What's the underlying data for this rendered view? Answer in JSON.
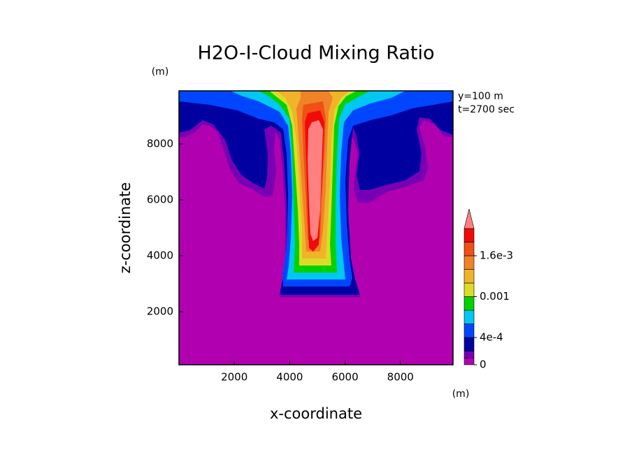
{
  "chart_data": {
    "type": "contour",
    "title": "H2O-I-Cloud Mixing Ratio",
    "x_label": "x-coordinate",
    "y_label": "z-coordinate",
    "x_unit": "(m)",
    "y_unit": "(m)",
    "annotations": [
      "y=100 m",
      "t=2700 sec"
    ],
    "xlim": [
      0,
      9900
    ],
    "ylim": [
      100,
      9900
    ],
    "xticks": [
      2000,
      4000,
      6000,
      8000
    ],
    "yticks": [
      2000,
      4000,
      6000,
      8000
    ],
    "levels": [
      0,
      0.0001,
      0.0002,
      0.0004,
      0.0006,
      0.0008,
      0.001,
      0.0012,
      0.0014,
      0.0016,
      0.0018,
      0.002
    ],
    "colors": [
      "#b000b0",
      "#7800b4",
      "#0000a0",
      "#0046ff",
      "#00c8f0",
      "#00d200",
      "#dcdc28",
      "#f0b428",
      "#f08228",
      "#f05014",
      "#f00a0a",
      "#ff8080"
    ],
    "colorbar_ticks": [
      0,
      {
        "value": 0.0004,
        "label": "4e-4"
      },
      0.001,
      {
        "value": 0.0016,
        "label": "1.6e-3"
      }
    ]
  }
}
